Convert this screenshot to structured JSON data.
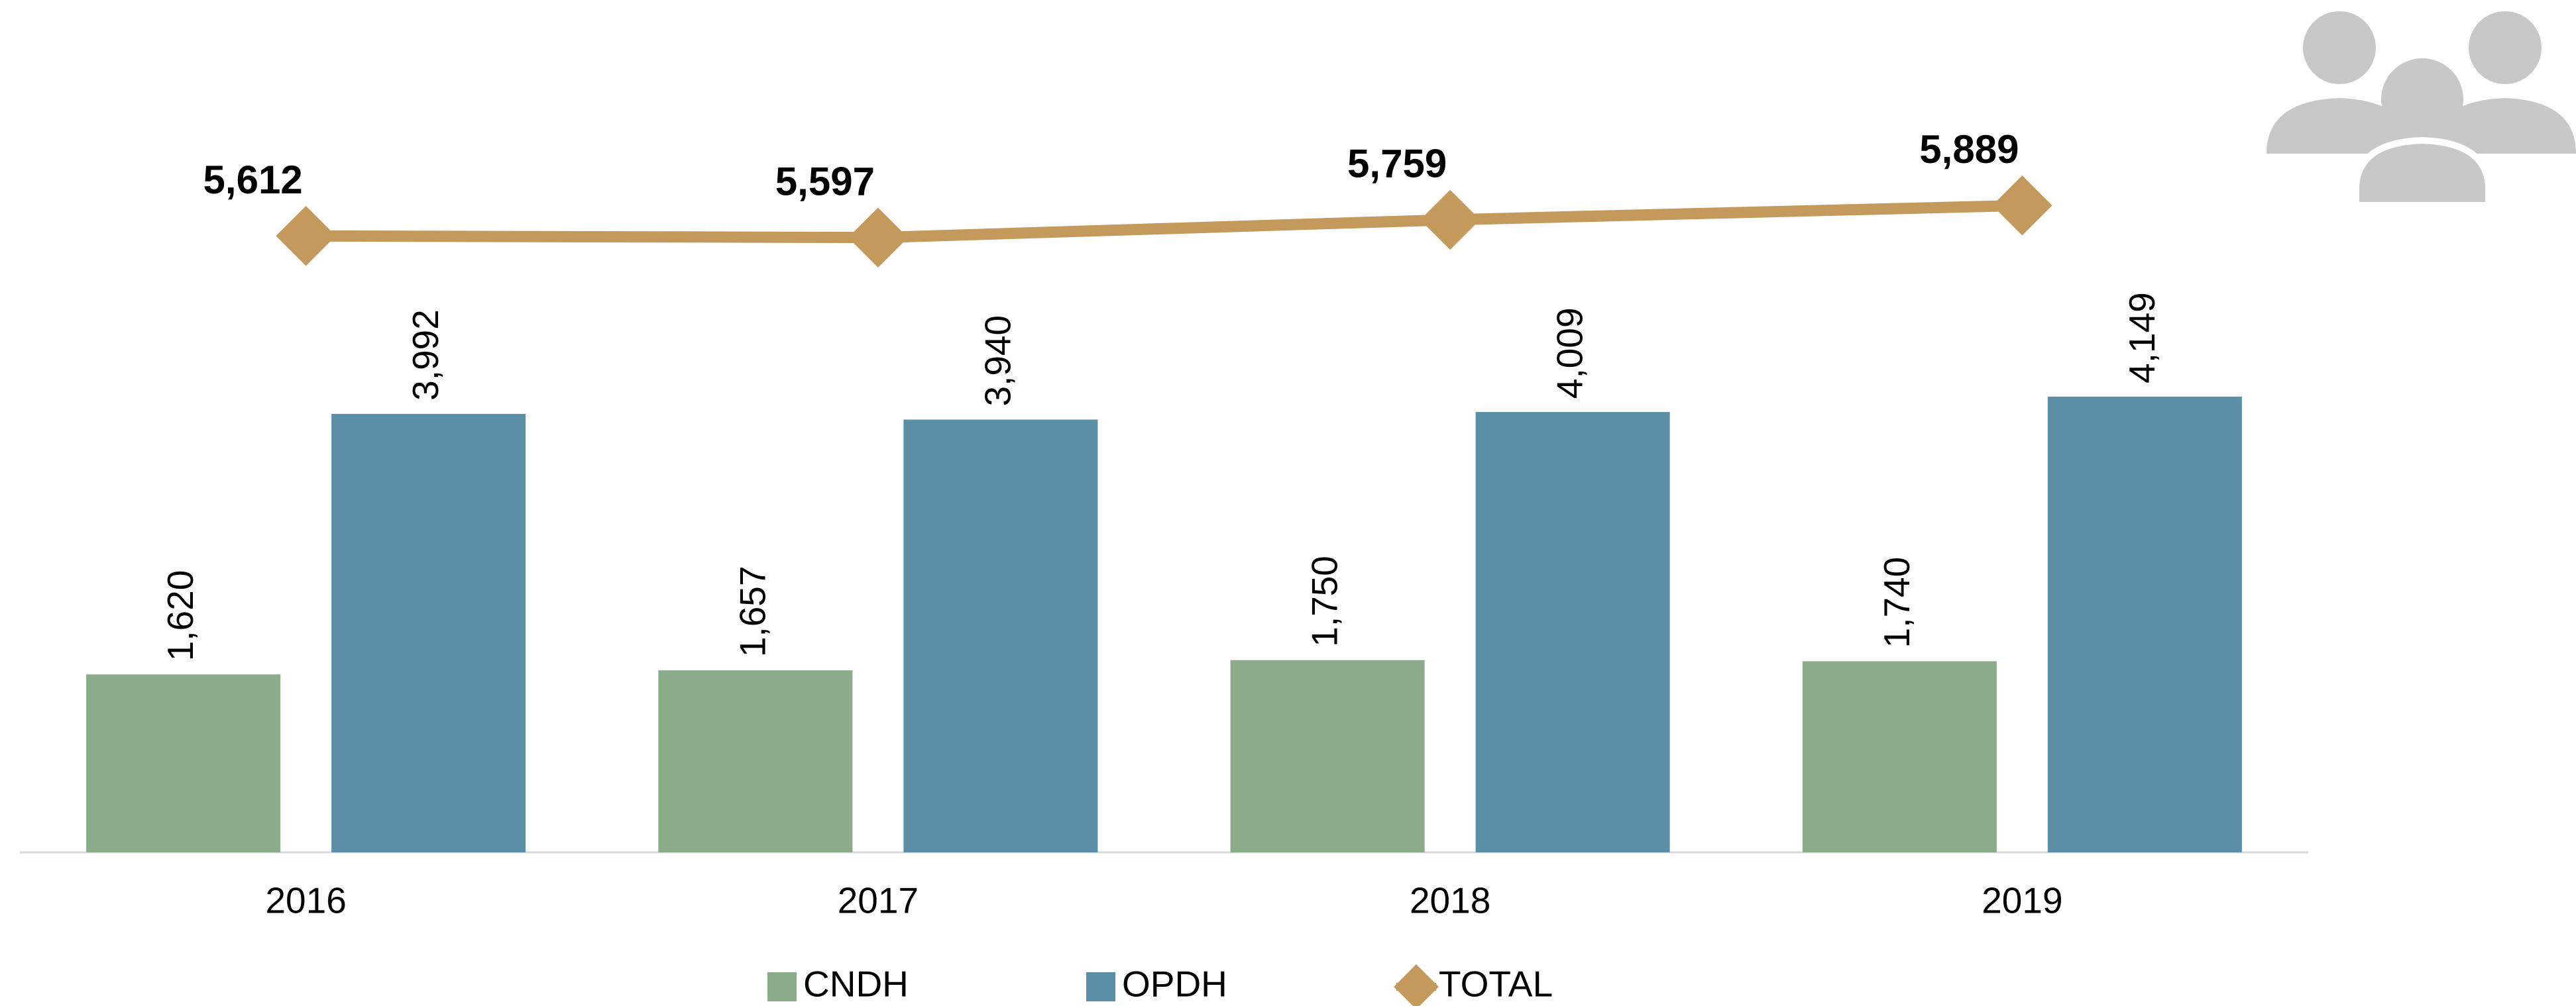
{
  "chart_data": {
    "type": "bar",
    "categories": [
      "2016",
      "2017",
      "2018",
      "2019"
    ],
    "series": [
      {
        "name": "CNDH",
        "type": "bar",
        "color": "#8aac8a",
        "values": [
          1620,
          1657,
          1750,
          1740
        ],
        "value_labels": [
          "1,620",
          "1,657",
          "1,750",
          "1,740"
        ]
      },
      {
        "name": "OPDH",
        "type": "bar",
        "color": "#5b8fa8",
        "values": [
          3992,
          3940,
          4009,
          4149
        ],
        "value_labels": [
          "3,992",
          "3,940",
          "4,009",
          "4,149"
        ]
      },
      {
        "name": "TOTAL",
        "type": "line",
        "color": "#c49a5c",
        "values": [
          5612,
          5597,
          5759,
          5889
        ],
        "value_labels": [
          "5,612",
          "5,597",
          "5,759",
          "5,889"
        ]
      }
    ],
    "ylim": [
      0,
      7000
    ],
    "legend": "bottom"
  }
}
